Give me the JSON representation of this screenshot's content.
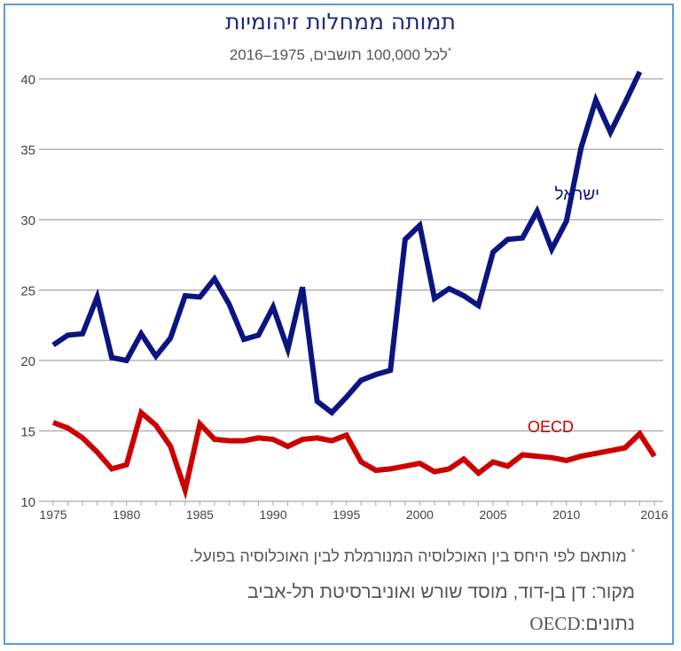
{
  "header": {
    "title": "תמותה ממחלות זיהומיות",
    "subtitle": "לכל 100,000 תושבים, 1975–2016",
    "subtitle_mark": "*"
  },
  "notes": {
    "footnote_mark": "*",
    "footnote": "מותאם לפי היחס בין האוכלוסיה המנורמלת לבין האוכלוסיה בפועל.",
    "source": "מקור:  דן בן-דוד, מוסד שורש ואוניברסיטת תל-אביב",
    "data_label": "נתונים:",
    "data_value": "OECD"
  },
  "colors": {
    "israel": "#0b1481",
    "oecd": "#cc0000",
    "grid": "#a6a6a6",
    "frame": "#5b9bd5"
  },
  "chart_data": {
    "type": "line",
    "title": "תמותה ממחלות זיהומיות",
    "subtitle": "לכל 100,000 תושבים, 1975–2016",
    "xlim": [
      1975,
      2016
    ],
    "ylim": [
      10,
      40
    ],
    "x_ticks": [
      1975,
      1980,
      1985,
      1990,
      1995,
      2000,
      2005,
      2010,
      2016
    ],
    "y_ticks": [
      10,
      15,
      20,
      25,
      30,
      35,
      40
    ],
    "grid": "horizontal",
    "x": [
      1975,
      1976,
      1977,
      1978,
      1979,
      1980,
      1981,
      1982,
      1983,
      1984,
      1985,
      1986,
      1987,
      1988,
      1989,
      1990,
      1991,
      1992,
      1993,
      1994,
      1995,
      1996,
      1997,
      1998,
      1999,
      2000,
      2001,
      2002,
      2003,
      2004,
      2005,
      2006,
      2007,
      2008,
      2009,
      2010,
      2011,
      2012,
      2013,
      2014,
      2015,
      2016
    ],
    "series": [
      {
        "name": "ישראל",
        "values": [
          21.1,
          21.8,
          21.9,
          24.5,
          20.2,
          20.0,
          21.9,
          20.3,
          21.6,
          24.6,
          24.5,
          25.8,
          24.0,
          21.5,
          21.8,
          23.8,
          20.8,
          25.2,
          17.1,
          16.3,
          17.4,
          18.6,
          19.0,
          19.3,
          28.6,
          29.6,
          24.4,
          25.1,
          24.6,
          23.9,
          27.7,
          28.6,
          28.7,
          30.6,
          27.9,
          29.9,
          35.1,
          38.5,
          36.2,
          38.3,
          40.5,
          null
        ]
      },
      {
        "name": "OECD",
        "values": [
          15.6,
          15.2,
          14.5,
          13.5,
          12.3,
          12.6,
          16.3,
          15.4,
          13.9,
          10.8,
          15.5,
          14.4,
          14.3,
          14.3,
          14.5,
          14.4,
          13.9,
          14.4,
          14.5,
          14.3,
          14.7,
          12.8,
          12.2,
          12.3,
          12.5,
          12.7,
          12.1,
          12.3,
          13.0,
          12.0,
          12.8,
          12.5,
          13.3,
          13.2,
          13.1,
          12.9,
          13.2,
          13.4,
          13.6,
          13.8,
          14.8,
          13.2
        ]
      }
    ]
  }
}
